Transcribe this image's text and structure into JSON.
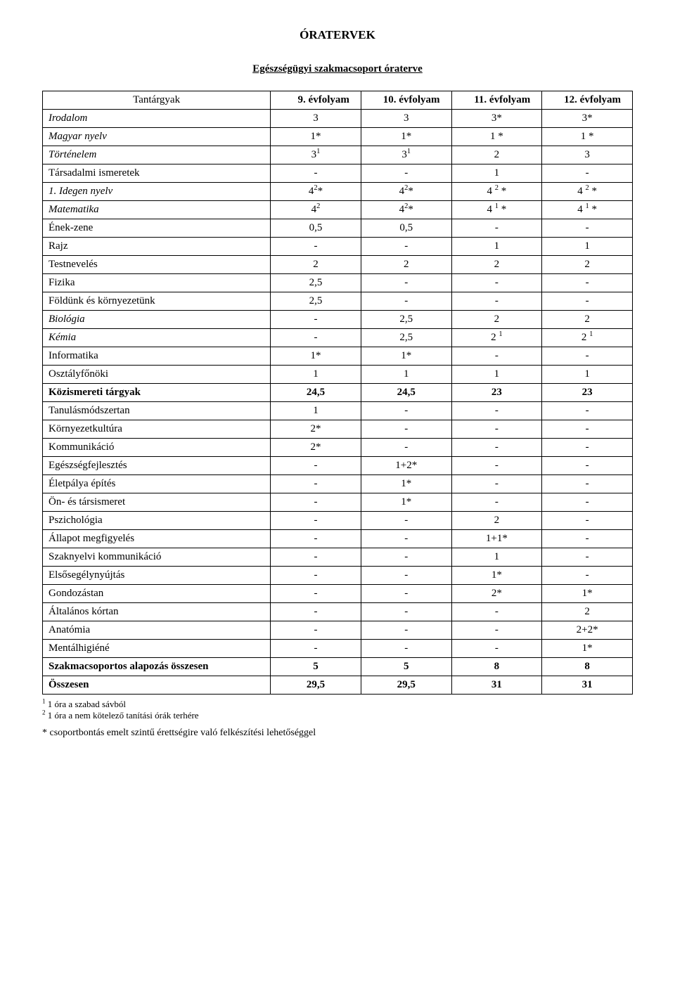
{
  "title": "ÓRATERVEK",
  "subtitle": "Egészségügyi szakmacsoport óraterve",
  "header": {
    "subject": "Tantárgyak",
    "cols": [
      "9. évfolyam",
      "10. évfolyam",
      "11. évfolyam",
      "12. évfolyam"
    ]
  },
  "rows": [
    {
      "label": "Irodalom",
      "style": "italic",
      "cells": [
        "3",
        "3",
        "3*",
        "3*"
      ]
    },
    {
      "label": "Magyar nyelv",
      "style": "italic",
      "cells": [
        "1*",
        "1*",
        "1 *",
        "1 *"
      ]
    },
    {
      "label": "Történelem",
      "style": "italic",
      "cells": [
        "3<sup>1</sup>",
        "3<sup>1</sup>",
        "2",
        "3"
      ]
    },
    {
      "label": "Társadalmi ismeretek",
      "cells": [
        "-",
        "-",
        "1",
        "-"
      ]
    },
    {
      "label": "1. Idegen nyelv",
      "style": "italic",
      "cells": [
        "4<sup>2</sup>*",
        "4<sup>2</sup>*",
        "4 <sup>2</sup> *",
        "4 <sup>2</sup> *"
      ]
    },
    {
      "label": "Matematika",
      "style": "italic",
      "cells": [
        "4<sup>2</sup>",
        "4<sup>2</sup>*",
        "4 <sup>1</sup> *",
        "4 <sup>1</sup> *"
      ]
    },
    {
      "label": "Ének-zene",
      "cells": [
        "0,5",
        "0,5",
        "-",
        "-"
      ]
    },
    {
      "label": "Rajz",
      "cells": [
        "-",
        "-",
        "1",
        "1"
      ]
    },
    {
      "label": "Testnevelés",
      "cells": [
        "2",
        "2",
        "2",
        "2"
      ]
    },
    {
      "label": "Fizika",
      "cells": [
        "2,5",
        "-",
        "-",
        "-"
      ]
    },
    {
      "label": "Földünk és környezetünk",
      "cells": [
        "2,5",
        "-",
        "-",
        "-"
      ]
    },
    {
      "label": "Biológia",
      "style": "italic",
      "cells": [
        "-",
        "2,5",
        "2",
        "2"
      ]
    },
    {
      "label": "Kémia",
      "style": "italic",
      "cells": [
        "-",
        "2,5",
        "2 <sup>1</sup>",
        "2 <sup>1</sup>"
      ]
    },
    {
      "label": "Informatika",
      "cells": [
        "1*",
        "1*",
        "-",
        "-"
      ]
    },
    {
      "label": "Osztályfőnöki",
      "cells": [
        "1",
        "1",
        "1",
        "1"
      ]
    },
    {
      "label": "Közismereti tárgyak",
      "style": "bold",
      "cells": [
        "24,5",
        "24,5",
        "23",
        "23"
      ]
    },
    {
      "label": "Tanulásmódszertan",
      "cells": [
        "1",
        "-",
        "-",
        "-"
      ]
    },
    {
      "label": "Környezetkultúra",
      "cells": [
        "2*",
        "-",
        "-",
        "-"
      ]
    },
    {
      "label": "Kommunikáció",
      "cells": [
        "2*",
        "-",
        "-",
        "-"
      ]
    },
    {
      "label": "Egészségfejlesztés",
      "cells": [
        "-",
        "1+2*",
        "-",
        "-"
      ]
    },
    {
      "label": "Életpálya építés",
      "cells": [
        "-",
        "1*",
        "-",
        "-"
      ]
    },
    {
      "label": "Ön- és társismeret",
      "cells": [
        "-",
        "1*",
        "-",
        "-"
      ]
    },
    {
      "label": "Pszichológia",
      "cells": [
        "-",
        "-",
        "2",
        "-"
      ]
    },
    {
      "label": "Állapot megfigyelés",
      "cells": [
        "-",
        "-",
        "1+1*",
        "-"
      ]
    },
    {
      "label": "Szaknyelvi kommunikáció",
      "cells": [
        "-",
        "-",
        "1",
        "-"
      ]
    },
    {
      "label": "Elsősegélynyújtás",
      "cells": [
        "-",
        "-",
        "1*",
        "-"
      ]
    },
    {
      "label": "Gondozástan",
      "cells": [
        "-",
        "-",
        "2*",
        "1*"
      ]
    },
    {
      "label": "Általános kórtan",
      "cells": [
        "-",
        "-",
        "-",
        "2"
      ]
    },
    {
      "label": "Anatómia",
      "cells": [
        "-",
        "-",
        "-",
        "2+2*"
      ]
    },
    {
      "label": "Mentálhigiéné",
      "cells": [
        "-",
        "-",
        "-",
        "1*"
      ]
    },
    {
      "label": "Szakmacsoportos alapozás összesen",
      "style": "bold",
      "cells": [
        "5",
        "5",
        "8",
        "8"
      ]
    },
    {
      "label": "Összesen",
      "style": "bold",
      "cells": [
        "29,5",
        "29,5",
        "31",
        "31"
      ]
    }
  ],
  "footnotes": [
    "<sup>1</sup> 1 óra a szabad sávból",
    "<sup>2</sup> 1 óra a nem kötelező tanítási órák terhére"
  ],
  "starnote": "* csoportbontás  emelt szintű érettségire való felkészítési lehetőséggel"
}
